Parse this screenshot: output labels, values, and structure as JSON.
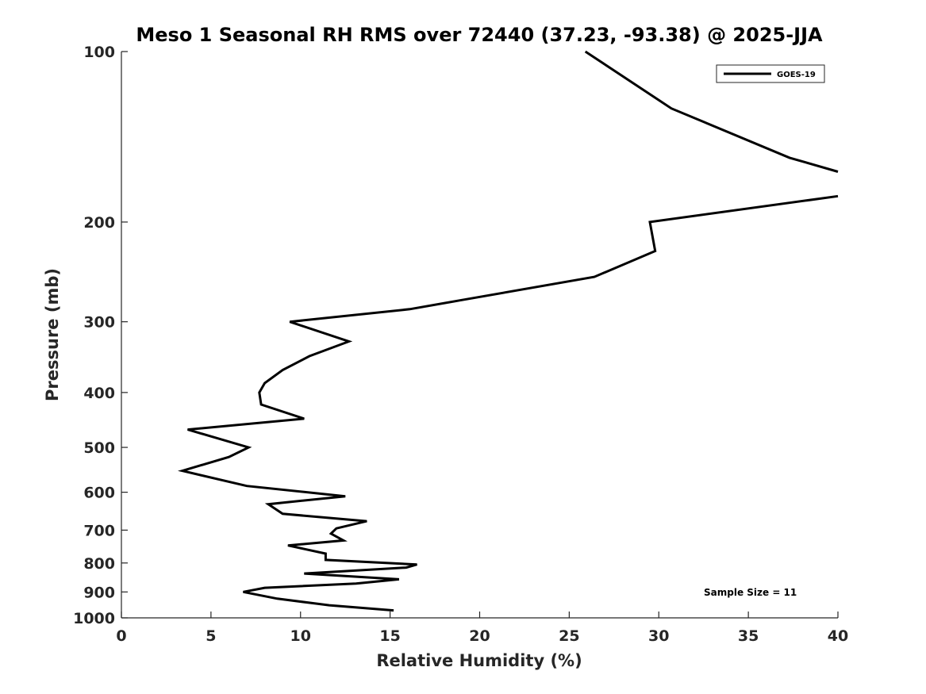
{
  "chart_data": {
    "type": "line",
    "title": "Meso 1 Seasonal RH RMS over 72440 (37.23, -93.38) @ 2025-JJA",
    "xlabel": "Relative Humidity (%)",
    "ylabel": "Pressure (mb)",
    "xlim": [
      0,
      40
    ],
    "ylim": [
      1000,
      100
    ],
    "yscale": "log",
    "x_ticks": [
      0,
      5,
      10,
      15,
      20,
      25,
      30,
      35,
      40
    ],
    "y_ticks": [
      100,
      200,
      300,
      400,
      500,
      600,
      700,
      800,
      900,
      1000
    ],
    "grid": false,
    "legend_position": "top-right",
    "annotation": "Sample Size = 11",
    "line_color": "#000000",
    "series": [
      {
        "name": "GOES-19",
        "segments": [
          [
            {
              "x": 25.9,
              "p": 100
            },
            {
              "x": 30.7,
              "p": 126
            },
            {
              "x": 37.3,
              "p": 154
            },
            {
              "x": 40.0,
              "p": 163
            }
          ],
          [
            {
              "x": 40.0,
              "p": 180
            },
            {
              "x": 29.5,
              "p": 200
            },
            {
              "x": 29.8,
              "p": 225
            },
            {
              "x": 26.4,
              "p": 250
            },
            {
              "x": 18.9,
              "p": 275
            },
            {
              "x": 16.1,
              "p": 285
            },
            {
              "x": 9.4,
              "p": 300
            },
            {
              "x": 12.7,
              "p": 325
            },
            {
              "x": 10.5,
              "p": 345
            },
            {
              "x": 9.0,
              "p": 365
            },
            {
              "x": 8.0,
              "p": 385
            },
            {
              "x": 7.7,
              "p": 400
            },
            {
              "x": 7.8,
              "p": 420
            },
            {
              "x": 10.2,
              "p": 445
            },
            {
              "x": 3.7,
              "p": 465
            },
            {
              "x": 7.1,
              "p": 500
            },
            {
              "x": 6.0,
              "p": 520
            },
            {
              "x": 3.4,
              "p": 550
            },
            {
              "x": 7.0,
              "p": 585
            },
            {
              "x": 12.5,
              "p": 610
            },
            {
              "x": 8.2,
              "p": 630
            },
            {
              "x": 9.0,
              "p": 655
            },
            {
              "x": 13.7,
              "p": 675
            },
            {
              "x": 12.0,
              "p": 695
            },
            {
              "x": 11.7,
              "p": 710
            },
            {
              "x": 12.4,
              "p": 730
            },
            {
              "x": 9.3,
              "p": 745
            },
            {
              "x": 11.4,
              "p": 770
            },
            {
              "x": 11.4,
              "p": 790
            },
            {
              "x": 16.5,
              "p": 805
            },
            {
              "x": 15.9,
              "p": 815
            },
            {
              "x": 10.2,
              "p": 835
            },
            {
              "x": 15.5,
              "p": 855
            },
            {
              "x": 13.1,
              "p": 870
            },
            {
              "x": 8.0,
              "p": 885
            },
            {
              "x": 6.8,
              "p": 900
            },
            {
              "x": 8.7,
              "p": 925
            },
            {
              "x": 11.6,
              "p": 950
            },
            {
              "x": 15.2,
              "p": 970
            }
          ]
        ]
      }
    ]
  }
}
